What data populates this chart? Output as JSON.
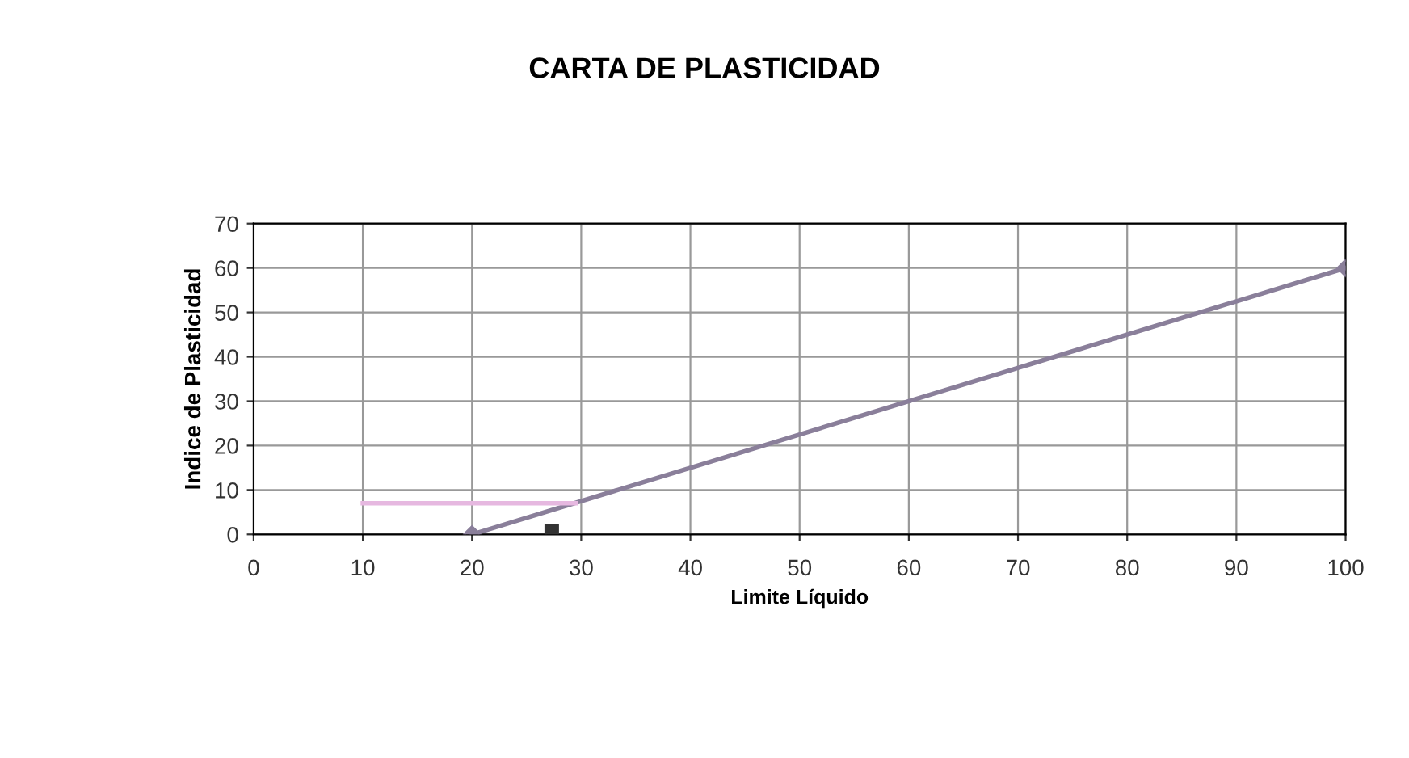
{
  "chart_data": {
    "type": "line",
    "title": "CARTA DE PLASTICIDAD",
    "xlabel": "Limite Líquido",
    "ylabel": "Indice de Plasticidad",
    "xlim": [
      0,
      100
    ],
    "xticks": [
      0,
      10,
      20,
      30,
      40,
      50,
      60,
      70,
      80,
      90,
      100
    ],
    "ylim": [
      0,
      70
    ],
    "yticks": [
      0,
      10,
      20,
      30,
      40,
      50,
      60,
      70
    ],
    "grid": true,
    "series": [
      {
        "color": "#8a7f9a",
        "x": [
          20,
          100
        ],
        "values": [
          0,
          60
        ],
        "marker": "diamond"
      },
      {
        "color": "#e6b8e0",
        "x": [
          10,
          29.5
        ],
        "values": [
          7,
          7
        ],
        "marker": "none"
      },
      {
        "type": "scatter",
        "color": "#333333",
        "x": [
          27.3
        ],
        "values": [
          0.8
        ],
        "marker": "square"
      }
    ]
  }
}
